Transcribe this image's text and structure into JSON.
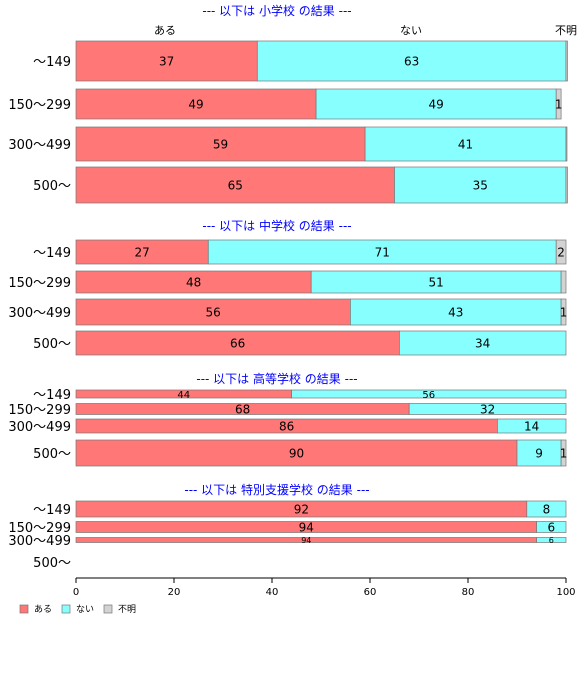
{
  "colors": {
    "aru": "#FF7777",
    "nai": "#88FFFF",
    "fumei": "#D3D3D3",
    "section_title": "#0000FF"
  },
  "chart_data": {
    "type": "bar",
    "orientation": "horizontal",
    "stacked": true,
    "xlim": [
      0,
      100
    ],
    "x_ticks": [
      "0",
      "20",
      "40",
      "60",
      "80",
      "100"
    ],
    "top_column_labels": [
      "ある",
      "ない",
      "不明"
    ],
    "legend": {
      "placement": "bottom-left",
      "entries": [
        {
          "label": "ある",
          "color_key": "aru"
        },
        {
          "label": "ない",
          "color_key": "nai"
        },
        {
          "label": "不明",
          "color_key": "fumei"
        }
      ]
    },
    "categories": [
      "～149",
      "150～299",
      "300～499",
      "500～"
    ],
    "sections": [
      {
        "title": "--- 以下は 小学校 の結果 ---",
        "rows": [
          {
            "category": "～149",
            "aru": 37,
            "nai": 63,
            "fumei": 0.3,
            "labels": [
              "37",
              "63",
              ""
            ]
          },
          {
            "category": "150～299",
            "aru": 49,
            "nai": 49,
            "fumei": 1,
            "labels": [
              "49",
              "49",
              "1"
            ]
          },
          {
            "category": "300～499",
            "aru": 59,
            "nai": 41,
            "fumei": 0.2,
            "labels": [
              "59",
              "41",
              ""
            ]
          },
          {
            "category": "500～",
            "aru": 65,
            "nai": 35,
            "fumei": 0.3,
            "labels": [
              "65",
              "35",
              ""
            ]
          }
        ]
      },
      {
        "title": "--- 以下は 中学校 の結果 ---",
        "rows": [
          {
            "category": "～149",
            "aru": 27,
            "nai": 71,
            "fumei": 2,
            "labels": [
              "27",
              "71",
              "2"
            ]
          },
          {
            "category": "150～299",
            "aru": 48,
            "nai": 51,
            "fumei": 1,
            "labels": [
              "48",
              "51",
              ""
            ]
          },
          {
            "category": "300～499",
            "aru": 56,
            "nai": 43,
            "fumei": 1,
            "labels": [
              "56",
              "43",
              "1"
            ]
          },
          {
            "category": "500～",
            "aru": 66,
            "nai": 34,
            "fumei": 0,
            "labels": [
              "66",
              "34",
              ""
            ]
          }
        ]
      },
      {
        "title": "--- 以下は 高等学校 の結果 ---",
        "rows": [
          {
            "category": "～149",
            "aru": 44,
            "nai": 56,
            "fumei": 0,
            "labels": [
              "44",
              "56",
              ""
            ]
          },
          {
            "category": "150～299",
            "aru": 68,
            "nai": 32,
            "fumei": 0,
            "labels": [
              "68",
              "32",
              ""
            ]
          },
          {
            "category": "300～499",
            "aru": 86,
            "nai": 14,
            "fumei": 0,
            "labels": [
              "86",
              "14",
              ""
            ]
          },
          {
            "category": "500～",
            "aru": 90,
            "nai": 9,
            "fumei": 1,
            "labels": [
              "90",
              "9",
              "1"
            ]
          }
        ]
      },
      {
        "title": "--- 以下は 特別支援学校 の結果 ---",
        "rows": [
          {
            "category": "～149",
            "aru": 92,
            "nai": 8,
            "fumei": 0,
            "labels": [
              "92",
              "8",
              ""
            ]
          },
          {
            "category": "150～299",
            "aru": 94,
            "nai": 6,
            "fumei": 0,
            "labels": [
              "94",
              "6",
              ""
            ]
          },
          {
            "category": "300～499",
            "aru": 94,
            "nai": 6,
            "fumei": 0,
            "labels": [
              "94",
              "6",
              ""
            ]
          },
          {
            "category": "500～",
            "aru": null,
            "nai": null,
            "fumei": null,
            "labels": [
              "",
              "",
              ""
            ]
          }
        ]
      }
    ]
  }
}
